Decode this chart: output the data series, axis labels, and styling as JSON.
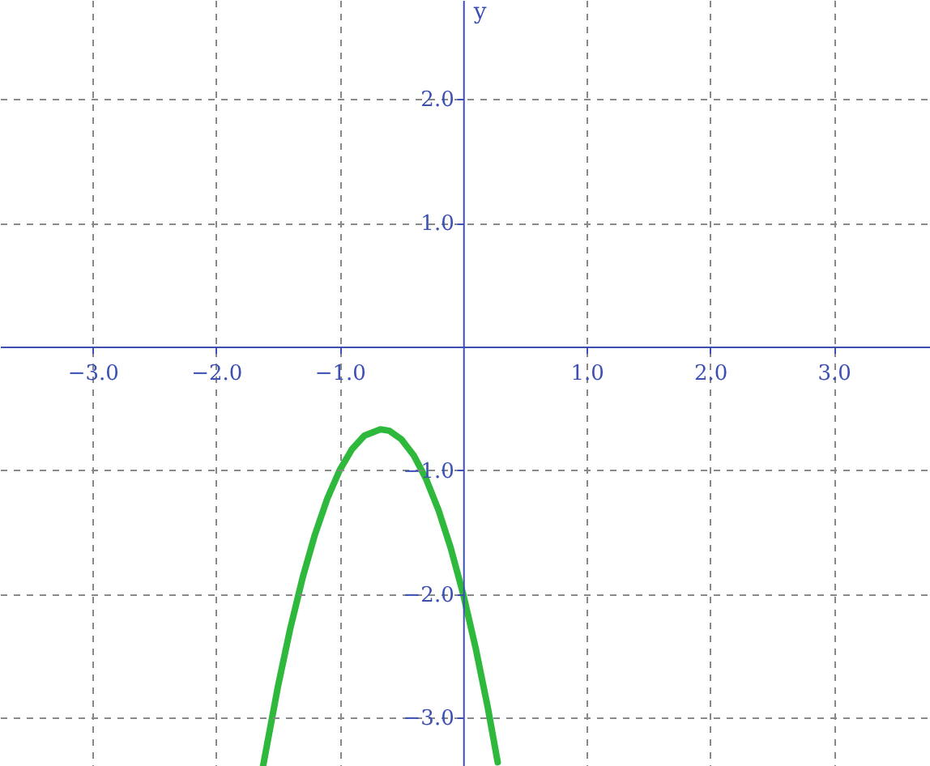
{
  "chart_data": {
    "type": "line",
    "ylabel": "y",
    "x": [
      -1.62,
      -1.5,
      -1.4,
      -1.3,
      -1.2,
      -1.1,
      -1.0,
      -0.9,
      -0.8,
      -0.67,
      -0.6,
      -0.5,
      -0.4,
      -0.3,
      -0.2,
      -0.1,
      0,
      0.1,
      0.2,
      0.28
    ],
    "series": [
      {
        "color": "#2eb83c",
        "values": [
          -3.39,
          -2.75,
          -2.28,
          -1.87,
          -1.52,
          -1.23,
          -1.0,
          -0.83,
          -0.72,
          -0.67,
          -0.68,
          -0.75,
          -0.88,
          -1.07,
          -1.32,
          -1.63,
          -2.0,
          -2.43,
          -2.92,
          -3.36
        ]
      }
    ],
    "xlim": [
      -3.75,
      3.78
    ],
    "ylim": [
      -3.39,
      2.8
    ],
    "xticks": [
      {
        "value": -3,
        "label": "−3.0"
      },
      {
        "value": -2,
        "label": "−2.0"
      },
      {
        "value": -1,
        "label": "−1.0"
      },
      {
        "value": 1,
        "label": "1.0"
      },
      {
        "value": 2,
        "label": "2.0"
      },
      {
        "value": 3,
        "label": "3.0"
      }
    ],
    "yticks": [
      {
        "value": -3,
        "label": "−3.0"
      },
      {
        "value": -2,
        "label": "−2.0"
      },
      {
        "value": -1,
        "label": "−1.0"
      },
      {
        "value": 1,
        "label": "1.0"
      },
      {
        "value": 2,
        "label": "2.0"
      }
    ],
    "grid": true,
    "line_style": "solid",
    "marker": "none"
  }
}
